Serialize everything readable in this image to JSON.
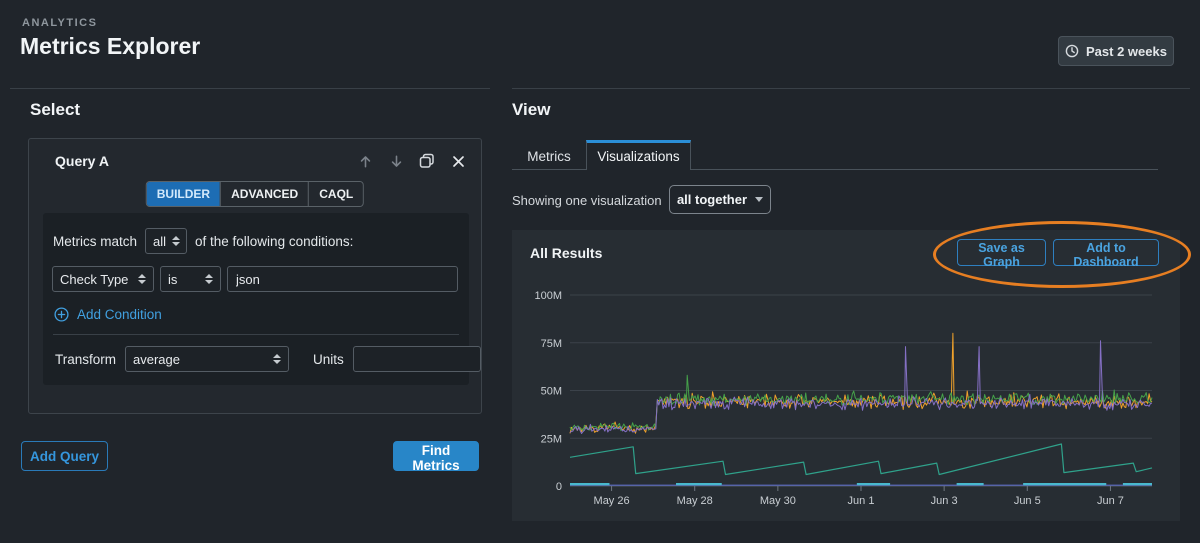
{
  "colors": {
    "page_bg": "#20252b",
    "panel_bg": "#272d33",
    "card_bg": "#23282e",
    "inner_bg": "#1b2025",
    "accent_blue": "#2b8fd8",
    "button_blue": "#2886c8",
    "link_blue": "#41a0e0",
    "annotation_orange": "#e67e22"
  },
  "header": {
    "eyebrow": "ANALYTICS",
    "title": "Metrics Explorer",
    "time_range_label": "Past 2 weeks"
  },
  "select_panel": {
    "heading": "Select",
    "query_card": {
      "title": "Query A",
      "mode_tabs": [
        {
          "label": "BUILDER",
          "active": true
        },
        {
          "label": "ADVANCED",
          "active": false
        },
        {
          "label": "CAQL",
          "active": false
        }
      ],
      "match_prefix": "Metrics match",
      "match_value": "all",
      "match_suffix": "of the following conditions:",
      "condition": {
        "field": "Check Type",
        "operator": "is",
        "value": "json"
      },
      "add_condition_label": "Add Condition",
      "transform_label": "Transform",
      "transform_value": "average",
      "units_label": "Units",
      "units_value": ""
    },
    "add_query_label": "Add Query",
    "find_metrics_label": "Find Metrics"
  },
  "view_panel": {
    "heading": "View",
    "tabs": [
      {
        "label": "Metrics",
        "active": false
      },
      {
        "label": "Visualizations",
        "active": true
      }
    ],
    "showing_label": "Showing one visualization",
    "layout_dropdown": "all together",
    "results": {
      "title": "All Results",
      "buttons": [
        "Save as Graph",
        "Add to Dashboard"
      ]
    }
  },
  "chart_data": {
    "type": "line",
    "title": "All Results",
    "xlabel": "",
    "ylabel": "",
    "legend": false,
    "grid": true,
    "x_axis": {
      "tick_labels": [
        "May 26",
        "May 28",
        "May 30",
        "Jun 1",
        "Jun 3",
        "Jun 5",
        "Jun 7"
      ],
      "tick_days": [
        1,
        3,
        5,
        7,
        9,
        11,
        13
      ],
      "domain_days": [
        0,
        14
      ]
    },
    "y_axis": {
      "tick_labels": [
        "0",
        "25M",
        "50M",
        "75M",
        "100M"
      ],
      "tick_values": [
        0,
        25,
        50,
        75,
        100
      ],
      "ylim": [
        0,
        100
      ],
      "unit": "M"
    },
    "series": [
      {
        "name": "metric-orange",
        "type": "noisy",
        "color": "#efa12b",
        "seed": 7,
        "base_before": 30,
        "base_after": 44,
        "jump_day": 2.08,
        "amp_before": 2.2,
        "amp_after": 3.4,
        "spikes": [
          {
            "day": 9.21,
            "value": 80
          }
        ]
      },
      {
        "name": "metric-green",
        "type": "noisy",
        "color": "#45a14a",
        "seed": 13,
        "base_before": 31,
        "base_after": 45.5,
        "jump_day": 2.08,
        "amp_before": 1.9,
        "amp_after": 3.0,
        "spikes": [
          {
            "day": 2.82,
            "value": 58
          }
        ]
      },
      {
        "name": "metric-purple",
        "type": "noisy",
        "color": "#8570c5",
        "seed": 29,
        "base_before": 29.5,
        "base_after": 43,
        "jump_day": 2.08,
        "amp_before": 2.0,
        "amp_after": 3.0,
        "spikes": [
          {
            "day": 8.07,
            "value": 73
          },
          {
            "day": 9.84,
            "value": 73
          },
          {
            "day": 12.76,
            "value": 76
          }
        ]
      },
      {
        "name": "sawtooth-teal",
        "type": "points",
        "color": "#2fa28b",
        "points": [
          [
            0,
            15
          ],
          [
            1.52,
            20.5
          ],
          [
            1.58,
            6.5
          ],
          [
            3.68,
            13
          ],
          [
            3.74,
            6
          ],
          [
            5.62,
            12.5
          ],
          [
            5.68,
            6
          ],
          [
            7.42,
            13
          ],
          [
            7.48,
            6.5
          ],
          [
            8.82,
            12
          ],
          [
            8.88,
            6
          ],
          [
            11.82,
            22
          ],
          [
            11.88,
            7
          ],
          [
            13.55,
            12
          ],
          [
            13.62,
            7.5
          ],
          [
            14,
            9.5
          ]
        ]
      },
      {
        "name": "flat-indigo",
        "type": "points",
        "color": "#5a68c0",
        "points": [
          [
            0,
            0.4
          ],
          [
            14,
            0.4
          ]
        ]
      },
      {
        "name": "cyan-segments",
        "type": "segments",
        "color": "#49b9ce",
        "value": 1.0,
        "segments": [
          [
            0,
            0.95
          ],
          [
            2.55,
            3.65
          ],
          [
            6.9,
            7.7
          ],
          [
            9.3,
            9.95
          ],
          [
            10.9,
            12.9
          ],
          [
            13.3,
            14
          ]
        ]
      }
    ]
  }
}
